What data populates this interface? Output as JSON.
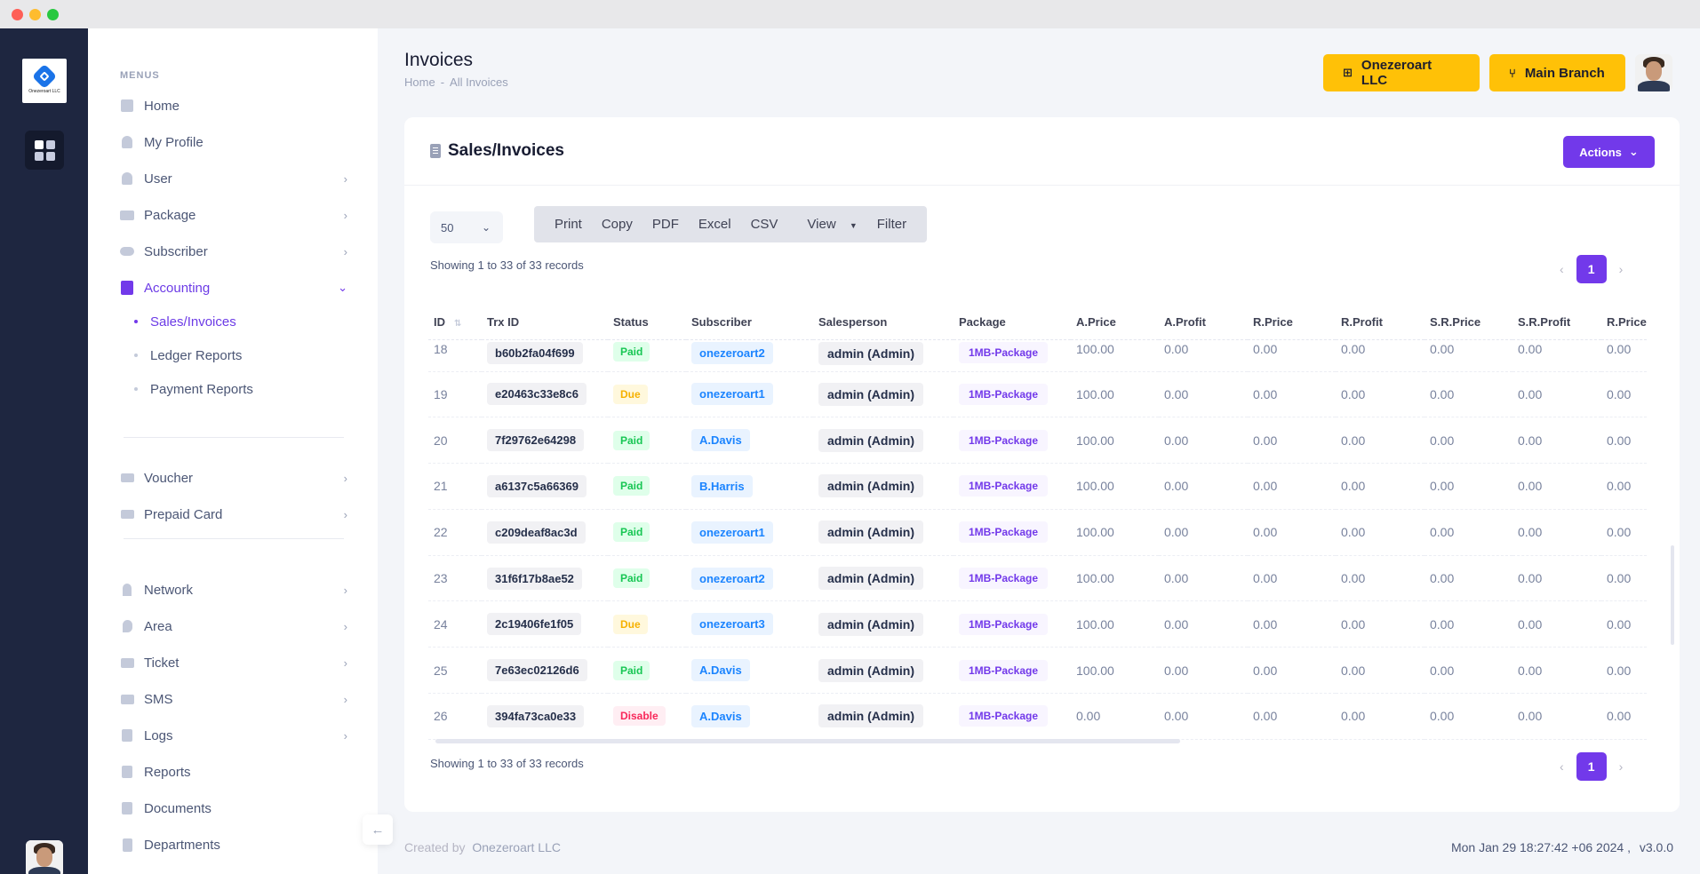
{
  "sidebar": {
    "menus_label": "MENUS",
    "items": [
      {
        "label": "Home",
        "icon": "grid-icon"
      },
      {
        "label": "My Profile",
        "icon": "person-icon"
      },
      {
        "label": "User",
        "icon": "user-icon"
      },
      {
        "label": "Package",
        "icon": "package-icon"
      },
      {
        "label": "Subscriber",
        "icon": "people-icon"
      },
      {
        "label": "Accounting",
        "icon": "calculator-icon"
      },
      {
        "label": "Voucher",
        "icon": "ticket-icon"
      },
      {
        "label": "Prepaid Card",
        "icon": "card-icon"
      },
      {
        "label": "Network",
        "icon": "antenna-icon"
      },
      {
        "label": "Area",
        "icon": "location-icon"
      },
      {
        "label": "Ticket",
        "icon": "envelope-icon"
      },
      {
        "label": "SMS",
        "icon": "message-icon"
      },
      {
        "label": "Logs",
        "icon": "book-icon"
      },
      {
        "label": "Reports",
        "icon": "report-icon"
      },
      {
        "label": "Documents",
        "icon": "document-icon"
      },
      {
        "label": "Departments",
        "icon": "building-icon"
      }
    ],
    "accounting_sub": [
      "Sales/Invoices",
      "Ledger Reports",
      "Payment Reports"
    ],
    "logo_text": "Onezeroart LLC"
  },
  "header": {
    "title": "Invoices",
    "breadcrumb": [
      "Home",
      "-",
      "All Invoices"
    ],
    "company_button": "Onezeroart LLC",
    "branch_button": "Main Branch"
  },
  "card": {
    "title": "Sales/Invoices",
    "actions_label": "Actions",
    "page_size": "50",
    "toolbar": [
      "Print",
      "Copy",
      "PDF",
      "Excel",
      "CSV",
      "View",
      "Filter"
    ],
    "showing": "Showing 1 to 33 of 33 records",
    "current_page": "1"
  },
  "table": {
    "columns": [
      "ID",
      "Trx ID",
      "Status",
      "Subscriber",
      "Salesperson",
      "Package",
      "A.Price",
      "A.Profit",
      "R.Price",
      "R.Profit",
      "S.R.Price",
      "S.R.Profit",
      "R.Price"
    ],
    "rows": [
      {
        "id": "18",
        "trx": "b60b2fa04f699",
        "status": "Paid",
        "subscriber": "onezeroart2",
        "salesperson": "admin (Admin)",
        "package": "1MB-Package",
        "a_price": "100.00",
        "a_profit": "0.00",
        "r_price": "0.00",
        "r_profit": "0.00",
        "sr_price": "0.00",
        "sr_profit": "0.00",
        "r_price2": "0.00"
      },
      {
        "id": "19",
        "trx": "e20463c33e8c6",
        "status": "Due",
        "subscriber": "onezeroart1",
        "salesperson": "admin (Admin)",
        "package": "1MB-Package",
        "a_price": "100.00",
        "a_profit": "0.00",
        "r_price": "0.00",
        "r_profit": "0.00",
        "sr_price": "0.00",
        "sr_profit": "0.00",
        "r_price2": "0.00"
      },
      {
        "id": "20",
        "trx": "7f29762e64298",
        "status": "Paid",
        "subscriber": "A.Davis",
        "salesperson": "admin (Admin)",
        "package": "1MB-Package",
        "a_price": "100.00",
        "a_profit": "0.00",
        "r_price": "0.00",
        "r_profit": "0.00",
        "sr_price": "0.00",
        "sr_profit": "0.00",
        "r_price2": "0.00"
      },
      {
        "id": "21",
        "trx": "a6137c5a66369",
        "status": "Paid",
        "subscriber": "B.Harris",
        "salesperson": "admin (Admin)",
        "package": "1MB-Package",
        "a_price": "100.00",
        "a_profit": "0.00",
        "r_price": "0.00",
        "r_profit": "0.00",
        "sr_price": "0.00",
        "sr_profit": "0.00",
        "r_price2": "0.00"
      },
      {
        "id": "22",
        "trx": "c209deaf8ac3d",
        "status": "Paid",
        "subscriber": "onezeroart1",
        "salesperson": "admin (Admin)",
        "package": "1MB-Package",
        "a_price": "100.00",
        "a_profit": "0.00",
        "r_price": "0.00",
        "r_profit": "0.00",
        "sr_price": "0.00",
        "sr_profit": "0.00",
        "r_price2": "0.00"
      },
      {
        "id": "23",
        "trx": "31f6f17b8ae52",
        "status": "Paid",
        "subscriber": "onezeroart2",
        "salesperson": "admin (Admin)",
        "package": "1MB-Package",
        "a_price": "100.00",
        "a_profit": "0.00",
        "r_price": "0.00",
        "r_profit": "0.00",
        "sr_price": "0.00",
        "sr_profit": "0.00",
        "r_price2": "0.00"
      },
      {
        "id": "24",
        "trx": "2c19406fe1f05",
        "status": "Due",
        "subscriber": "onezeroart3",
        "salesperson": "admin (Admin)",
        "package": "1MB-Package",
        "a_price": "100.00",
        "a_profit": "0.00",
        "r_price": "0.00",
        "r_profit": "0.00",
        "sr_price": "0.00",
        "sr_profit": "0.00",
        "r_price2": "0.00"
      },
      {
        "id": "25",
        "trx": "7e63ec02126d6",
        "status": "Paid",
        "subscriber": "A.Davis",
        "salesperson": "admin (Admin)",
        "package": "1MB-Package",
        "a_price": "100.00",
        "a_profit": "0.00",
        "r_price": "0.00",
        "r_profit": "0.00",
        "sr_price": "0.00",
        "sr_profit": "0.00",
        "r_price2": "0.00"
      },
      {
        "id": "26",
        "trx": "394fa73ca0e33",
        "status": "Disable",
        "subscriber": "A.Davis",
        "salesperson": "admin (Admin)",
        "package": "1MB-Package",
        "a_price": "0.00",
        "a_profit": "0.00",
        "r_price": "0.00",
        "r_profit": "0.00",
        "sr_price": "0.00",
        "sr_profit": "0.00",
        "r_price2": "0.00"
      }
    ]
  },
  "footer": {
    "created_by": "Created by",
    "company": "Onezeroart LLC",
    "datetime": "Mon Jan 29 18:27:42 +06 2024 ,",
    "version": "v3.0.0"
  },
  "colors": {
    "accent": "#7239ea",
    "warning": "#ffc107",
    "rail": "#1e2640"
  }
}
